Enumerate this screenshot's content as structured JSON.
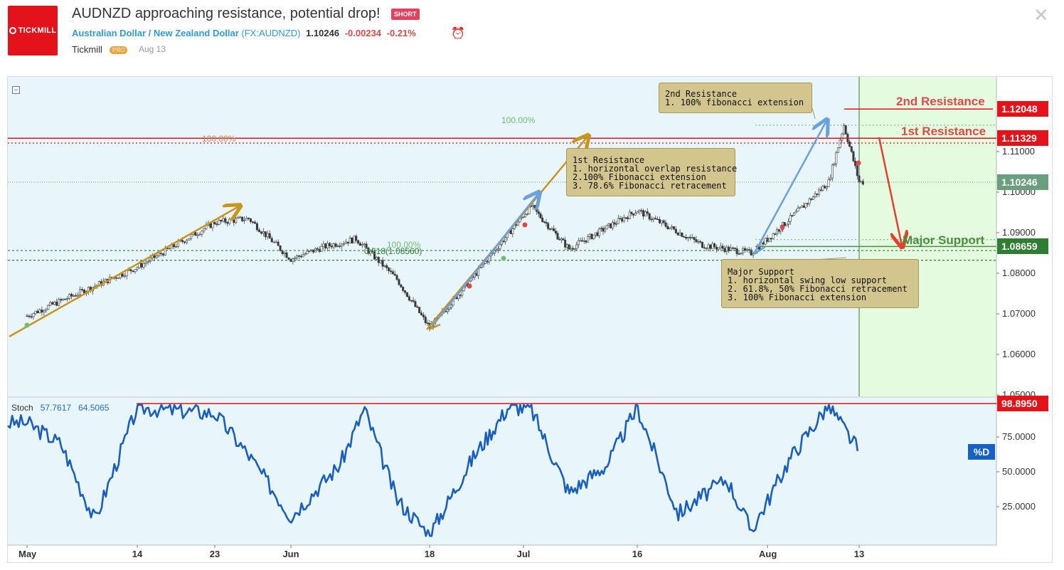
{
  "header": {
    "logo_text": "TICKMILL",
    "title": "AUDNZD approaching resistance, potential drop!",
    "badge": "SHORT",
    "symbol_name": "Australian Dollar / New Zealand Dollar",
    "symbol_code": "(FX:AUDNZD)",
    "price": "1.10246",
    "change": "-0.00234",
    "change_pct": "-0.21%",
    "author": "Tickmill",
    "author_badge": "PRO",
    "date": "Aug 13"
  },
  "annotations": {
    "second_resistance": "2nd Resistance\n1. 100% fibonacci extension",
    "first_resistance": "1st Resistance\n1. horizontal overlap resistance\n2.100% Fibonacci extension\n3. 78.6% Fibonacci retracement",
    "major_support": "Major Support\n1. horizontal swing low support\n2. 61.8%, 50% Fibonacci retracement\n3. 100% Fibonacci extension"
  },
  "level_texts": {
    "second_resistance": "2nd Resistance",
    "first_resistance": "1st Resistance",
    "major_support": "Major Support"
  },
  "fib_labels": {
    "fib_100_top": "100.00%",
    "fib_100_mid": "100.00%",
    "fib_100_left": "100.00%",
    "fib_618": "0.618(1.08560)"
  },
  "price_axis": {
    "ticks": [
      "1.11000",
      "1.10000",
      "1.09000",
      "1.08000",
      "1.07000",
      "1.06000",
      "1.05000"
    ],
    "labels": [
      {
        "value": "1.12048",
        "color": "#e4121b"
      },
      {
        "value": "1.11329",
        "color": "#e4121b"
      },
      {
        "value": "1.10246",
        "color": "#6b9e7c"
      },
      {
        "value": "1.08659",
        "color": "#2e7d32"
      }
    ]
  },
  "stoch": {
    "name": "Stoch",
    "k": "57.7617",
    "d": "64.5065",
    "label_pct_d": "%D",
    "ticks": [
      "75.0000",
      "50.0000",
      "25.0000"
    ],
    "level_label": "98.8950"
  },
  "x_axis": {
    "ticks": [
      "May",
      "14",
      "23",
      "Jun",
      "18",
      "Jul",
      "16",
      "Aug",
      "13"
    ]
  },
  "colors": {
    "bg": "#e8f5fb",
    "forecast_zone": "#e4fbe0",
    "resistance": "#e4121b",
    "support": "#4a8f3e",
    "stoch_line": "#1a5fc0",
    "arrow_gold": "#c8951f",
    "arrow_blue": "#6a9fe0"
  },
  "chart_data": [
    {
      "type": "line",
      "title": "",
      "series": [
        {
          "name": "AUDNZD",
          "x": [
            "May 1",
            "May 14",
            "May 23",
            "May 27",
            "Jun 1",
            "Jun 5",
            "Jun 9",
            "Jun 14",
            "Jun 18",
            "Jun 24",
            "Jul 2",
            "Jul 7",
            "Jul 16",
            "Jul 24",
            "Jul 30",
            "Aug 4",
            "Aug 9",
            "Aug 11",
            "Aug 13"
          ],
          "values": [
            1.0695,
            1.0815,
            1.0925,
            1.0935,
            1.0835,
            1.0865,
            1.0885,
            1.0785,
            1.0665,
            1.079,
            1.0965,
            1.086,
            1.0955,
            1.087,
            1.085,
            1.0935,
            1.1025,
            1.1165,
            1.1025
          ]
        }
      ],
      "levels": [
        {
          "label": "2nd Resistance",
          "value": 1.12048
        },
        {
          "label": "1st Resistance",
          "value": 1.11329
        },
        {
          "label": "Major Support",
          "value": 1.08659
        }
      ],
      "ylim": [
        1.05,
        1.125
      ],
      "last_price": 1.10246
    },
    {
      "type": "line",
      "title": "",
      "series": [
        {
          "name": "Stoch",
          "x": [
            "May 1",
            "May 5",
            "May 9",
            "May 14",
            "May 23",
            "May 27",
            "Jun 1",
            "Jun 7",
            "Jun 10",
            "Jun 14",
            "Jun 18",
            "Jun 24",
            "Jun 29",
            "Jul 2",
            "Jul 7",
            "Jul 12",
            "Jul 16",
            "Jul 21",
            "Jul 27",
            "Jul 30",
            "Aug 4",
            "Aug 9",
            "Aug 13"
          ],
          "values": [
            85,
            70,
            15,
            96,
            92,
            62,
            18,
            55,
            95,
            30,
            5,
            60,
            97,
            95,
            35,
            55,
            96,
            20,
            45,
            8,
            60,
            98,
            64.5
          ]
        }
      ],
      "ylim": [
        0,
        100
      ]
    }
  ]
}
